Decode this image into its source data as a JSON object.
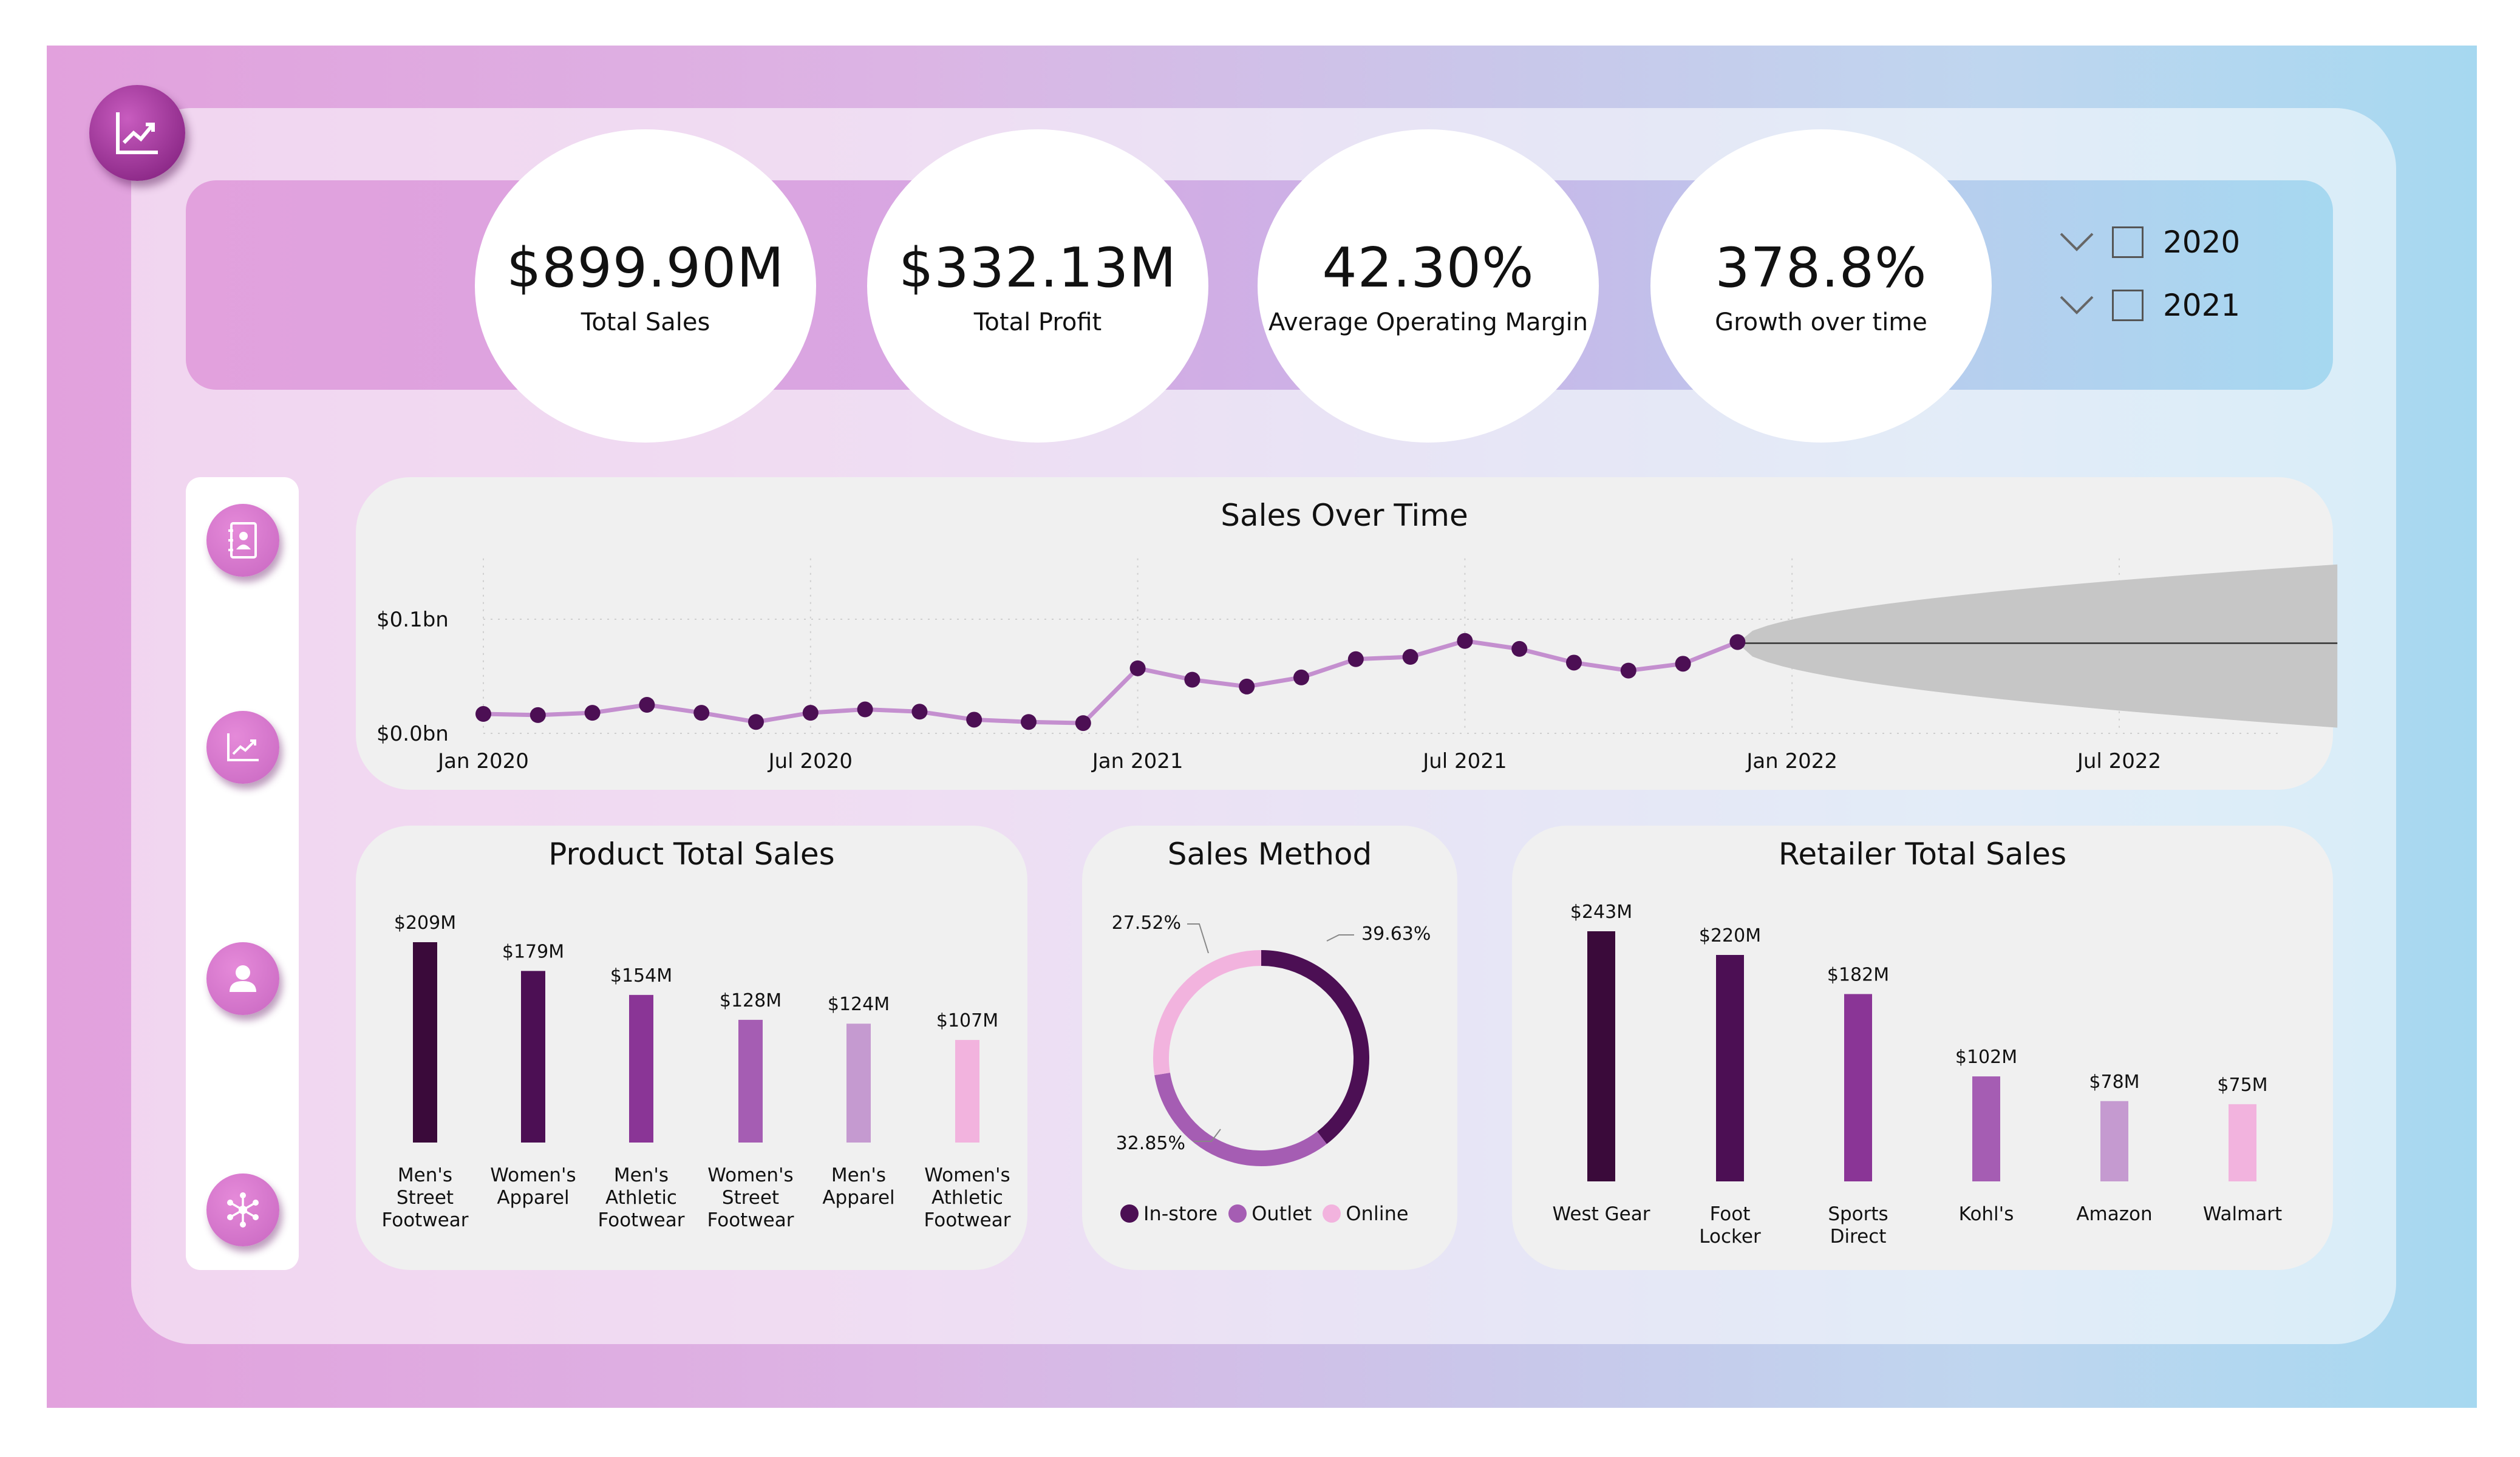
{
  "kpis": [
    {
      "value": "$899.90M",
      "label": "Total Sales"
    },
    {
      "value": "$332.13M",
      "label": "Total Profit"
    },
    {
      "value": "42.30%",
      "label": "Average Operating Margin"
    },
    {
      "value": "378.8%",
      "label": "Growth over time"
    }
  ],
  "year_slicer": {
    "items": [
      {
        "label": "2020",
        "checked": false
      },
      {
        "label": "2021",
        "checked": false
      }
    ]
  },
  "nav": {
    "items": [
      "contact-book-icon",
      "trend-chart-icon",
      "user-icon",
      "network-icon"
    ]
  },
  "colors": {
    "dark": "#3a0a3a",
    "deep_purple": "#4c0f54",
    "purple": "#8a3596",
    "mid_purple": "#a55db3",
    "light_purple": "#c59ad0",
    "pink": "#f2b3de",
    "line": "#c48fcf",
    "forecast_band": "#c6c6c6"
  },
  "sales_over_time": {
    "title": "Sales Over Time",
    "y_ticks": [
      "$0.1bn",
      "$0.0bn"
    ],
    "x_ticks": [
      "Jan 2020",
      "Jul 2020",
      "Jan 2021",
      "Jul 2021",
      "Jan 2022",
      "Jul 2022"
    ]
  },
  "product_sales": {
    "title": "Product Total Sales",
    "categories": [
      [
        "Men's",
        "Street",
        "Footwear"
      ],
      [
        "Women's",
        "Apparel"
      ],
      [
        "Men's",
        "Athletic",
        "Footwear"
      ],
      [
        "Women's",
        "Street",
        "Footwear"
      ],
      [
        "Men's",
        "Apparel"
      ],
      [
        "Women's",
        "Athletic",
        "Footwear"
      ]
    ],
    "value_labels": [
      "$209M",
      "$179M",
      "$154M",
      "$128M",
      "$124M",
      "$107M"
    ]
  },
  "sales_method": {
    "title": "Sales Method",
    "slices": [
      {
        "name": "In-store",
        "label": "39.63%"
      },
      {
        "name": "Outlet",
        "label": "32.85%"
      },
      {
        "name": "Online",
        "label": "27.52%"
      }
    ]
  },
  "retailer_sales": {
    "title": "Retailer Total Sales",
    "categories": [
      [
        "West Gear"
      ],
      [
        "Foot",
        "Locker"
      ],
      [
        "Sports",
        "Direct"
      ],
      [
        "Kohl's"
      ],
      [
        "Amazon"
      ],
      [
        "Walmart"
      ]
    ],
    "value_labels": [
      "$243M",
      "$220M",
      "$182M",
      "$102M",
      "$78M",
      "$75M"
    ]
  },
  "chart_data": [
    {
      "type": "line",
      "title": "Sales Over Time",
      "x": [
        "2020-01",
        "2020-02",
        "2020-03",
        "2020-04",
        "2020-05",
        "2020-06",
        "2020-07",
        "2020-08",
        "2020-09",
        "2020-10",
        "2020-11",
        "2020-12",
        "2021-01",
        "2021-02",
        "2021-03",
        "2021-04",
        "2021-05",
        "2021-06",
        "2021-07",
        "2021-08",
        "2021-09",
        "2021-10",
        "2021-11",
        "2021-12"
      ],
      "series": [
        {
          "values": [
            0.017,
            0.016,
            0.018,
            0.025,
            0.018,
            0.01,
            0.018,
            0.021,
            0.019,
            0.012,
            0.01,
            0.009,
            0.057,
            0.047,
            0.041,
            0.049,
            0.065,
            0.067,
            0.081,
            0.074,
            0.062,
            0.055,
            0.061,
            0.08
          ]
        }
      ],
      "forecast": {
        "x_start": "2021-12",
        "x_end": "2022-11",
        "value": 0.079,
        "upper_end": 0.148,
        "lower_end": 0.005
      },
      "y_ticks": [
        0.0,
        0.1
      ],
      "ylim": [
        0.0,
        0.148
      ],
      "grid": true
    },
    {
      "type": "bar",
      "title": "Product Total Sales",
      "categories": [
        "Men's Street Footwear",
        "Women's Apparel",
        "Men's Athletic Footwear",
        "Women's Street Footwear",
        "Men's Apparel",
        "Women's Athletic Footwear"
      ],
      "values": [
        209,
        179,
        154,
        128,
        124,
        107
      ],
      "ylim": [
        0,
        209
      ]
    },
    {
      "type": "pie",
      "title": "Sales Method",
      "categories": [
        "In-store",
        "Outlet",
        "Online"
      ],
      "values": [
        39.63,
        32.85,
        27.52
      ],
      "donut": true,
      "legend": "bottom"
    },
    {
      "type": "bar",
      "title": "Retailer Total Sales",
      "categories": [
        "West Gear",
        "Foot Locker",
        "Sports Direct",
        "Kohl's",
        "Amazon",
        "Walmart"
      ],
      "values": [
        243,
        220,
        182,
        102,
        78,
        75
      ],
      "ylim": [
        0,
        243
      ]
    }
  ]
}
